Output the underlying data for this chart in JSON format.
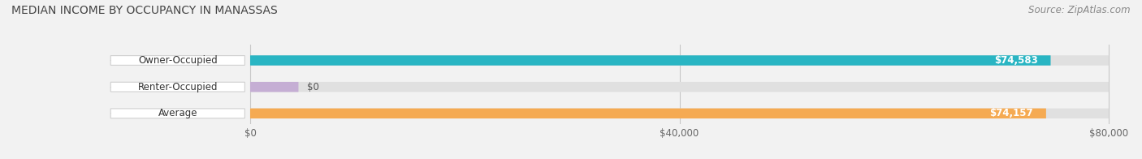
{
  "title": "MEDIAN INCOME BY OCCUPANCY IN MANASSAS",
  "source": "Source: ZipAtlas.com",
  "categories": [
    "Owner-Occupied",
    "Renter-Occupied",
    "Average"
  ],
  "values": [
    74583,
    0,
    74157
  ],
  "bar_colors": [
    "#29b5c3",
    "#c5aed4",
    "#f5aa52"
  ],
  "label_values": [
    "$74,583",
    "$0",
    "$74,157"
  ],
  "xlim_max": 80000,
  "xtick_labels": [
    "$0",
    "$40,000",
    "$80,000"
  ],
  "xtick_vals": [
    0,
    40000,
    80000
  ],
  "background_color": "#f2f2f2",
  "bar_bg_color": "#e0e0e0",
  "title_fontsize": 10,
  "source_fontsize": 8.5,
  "bar_height": 0.38,
  "renter_small_val": 4500
}
